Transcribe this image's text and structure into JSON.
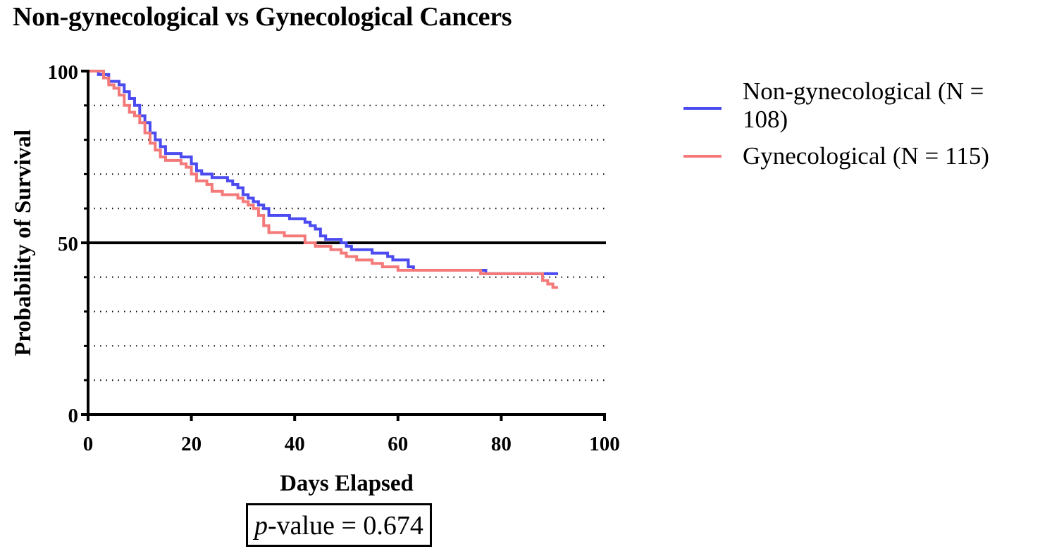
{
  "chart_data": {
    "type": "line",
    "subtype": "kaplan-meier-step",
    "title": "Non-gynecological vs Gynecological Cancers",
    "xlabel": "Days Elapsed",
    "ylabel": "Probability of Survival",
    "xlim": [
      0,
      100
    ],
    "ylim": [
      0,
      100
    ],
    "x_ticks": [
      0,
      20,
      40,
      60,
      80,
      100
    ],
    "y_ticks": [
      0,
      50,
      100
    ],
    "minor_gridlines_y": [
      10,
      20,
      30,
      40,
      60,
      70,
      80,
      90
    ],
    "reference_line_y": 50,
    "grid": "dotted horizontal",
    "legend_position": "right",
    "series": [
      {
        "name": "Non-gynecological (N = 108)",
        "label_line1": "Non-gynecological (N =",
        "label_line2": "108)",
        "color": "#4b4bf0",
        "steps": [
          [
            0,
            100
          ],
          [
            2,
            99
          ],
          [
            4,
            97
          ],
          [
            6,
            96
          ],
          [
            7,
            94
          ],
          [
            8,
            92
          ],
          [
            9,
            90
          ],
          [
            10,
            87
          ],
          [
            11,
            85
          ],
          [
            12,
            82
          ],
          [
            13,
            80
          ],
          [
            14,
            78
          ],
          [
            15,
            76
          ],
          [
            18,
            75
          ],
          [
            20,
            73
          ],
          [
            21,
            71
          ],
          [
            22,
            70
          ],
          [
            24,
            69
          ],
          [
            27,
            68
          ],
          [
            28,
            67
          ],
          [
            29,
            66
          ],
          [
            30,
            64
          ],
          [
            31,
            63
          ],
          [
            32,
            62
          ],
          [
            33,
            61
          ],
          [
            34,
            60
          ],
          [
            35,
            58
          ],
          [
            39,
            57
          ],
          [
            42,
            56
          ],
          [
            43,
            55
          ],
          [
            44,
            54
          ],
          [
            45,
            52
          ],
          [
            46,
            51
          ],
          [
            49,
            50
          ],
          [
            50,
            49
          ],
          [
            51,
            48
          ],
          [
            55,
            47
          ],
          [
            58,
            46
          ],
          [
            59,
            45
          ],
          [
            62,
            43
          ],
          [
            63,
            42
          ],
          [
            77,
            41
          ],
          [
            81,
            41
          ],
          [
            91,
            41
          ]
        ]
      },
      {
        "name": "Gynecological (N = 115)",
        "label_line1": "Gynecological (N = 115)",
        "color": "#f47a7a",
        "steps": [
          [
            0,
            100
          ],
          [
            3,
            98
          ],
          [
            4,
            96
          ],
          [
            5,
            95
          ],
          [
            6,
            93
          ],
          [
            7,
            90
          ],
          [
            8,
            88
          ],
          [
            9,
            87
          ],
          [
            10,
            85
          ],
          [
            11,
            82
          ],
          [
            12,
            79
          ],
          [
            13,
            77
          ],
          [
            14,
            75
          ],
          [
            15,
            74
          ],
          [
            18,
            73
          ],
          [
            19,
            72
          ],
          [
            20,
            70
          ],
          [
            21,
            68
          ],
          [
            23,
            67
          ],
          [
            24,
            65
          ],
          [
            26,
            64
          ],
          [
            29,
            63
          ],
          [
            30,
            62
          ],
          [
            31,
            61
          ],
          [
            32,
            60
          ],
          [
            33,
            58
          ],
          [
            34,
            55
          ],
          [
            35,
            53
          ],
          [
            38,
            52
          ],
          [
            42,
            50
          ],
          [
            44,
            49
          ],
          [
            47,
            48
          ],
          [
            49,
            47
          ],
          [
            50,
            46
          ],
          [
            52,
            45
          ],
          [
            55,
            44
          ],
          [
            57,
            43
          ],
          [
            60,
            42
          ],
          [
            66,
            42
          ],
          [
            76,
            41
          ],
          [
            81,
            41
          ],
          [
            87,
            41
          ],
          [
            88,
            39
          ],
          [
            89,
            38
          ],
          [
            90,
            37
          ],
          [
            91,
            37
          ]
        ]
      }
    ],
    "annotation": {
      "p_prefix": "p",
      "p_suffix": "-value = 0.674",
      "p_value": 0.674
    }
  }
}
